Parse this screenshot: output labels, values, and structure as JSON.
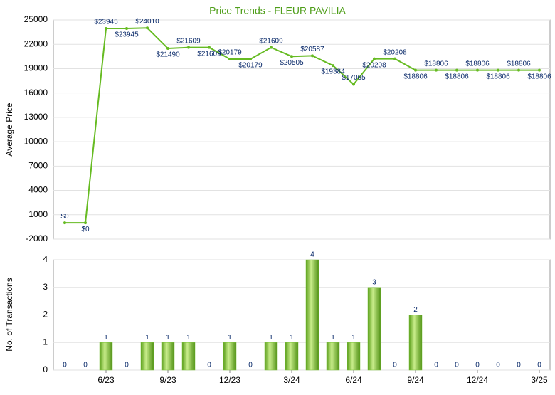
{
  "chart_data": [
    {
      "type": "line",
      "title": "Price Trends - FLEUR PAVILIA",
      "y_label": "Average Price",
      "values": [
        0,
        0,
        23945,
        23945,
        24010,
        21490,
        21609,
        21609,
        20179,
        20179,
        21609,
        20505,
        20587,
        19384,
        17065,
        20208,
        20208,
        18806,
        18806,
        18806,
        18806,
        18806,
        18806,
        18806
      ],
      "value_labels": [
        "$0",
        "$0",
        "$23945",
        "$23945",
        "$24010",
        "$21490",
        "$21609",
        "$21609",
        "$20179",
        "$20179",
        "$21609",
        "$20505",
        "$20587",
        "$19384",
        "$17065",
        "$20208",
        "$20208",
        "$18806",
        "$18806",
        "$18806",
        "$18806",
        "$18806",
        "$18806",
        "$18806"
      ],
      "color": "#66bb22",
      "ylim": [
        -2000,
        25000
      ],
      "yticks": [
        -2000,
        1000,
        4000,
        7000,
        10000,
        13000,
        16000,
        19000,
        22000,
        25000
      ],
      "grid": true
    },
    {
      "type": "bar",
      "y_label": "No. of Transactions",
      "categories": [
        null,
        null,
        "6/23",
        null,
        null,
        "9/23",
        null,
        null,
        "12/23",
        null,
        null,
        "3/24",
        null,
        null,
        "6/24",
        null,
        null,
        "9/24",
        null,
        null,
        "12/24",
        null,
        null,
        "3/25"
      ],
      "values": [
        0,
        0,
        1,
        0,
        1,
        1,
        1,
        0,
        1,
        0,
        1,
        1,
        4,
        1,
        1,
        3,
        0,
        2,
        0,
        0,
        0,
        0,
        0,
        0
      ],
      "color": "#7cc23a",
      "ylim": [
        0,
        4
      ],
      "yticks": [
        0,
        1,
        2,
        3,
        4
      ],
      "grid": true
    }
  ]
}
